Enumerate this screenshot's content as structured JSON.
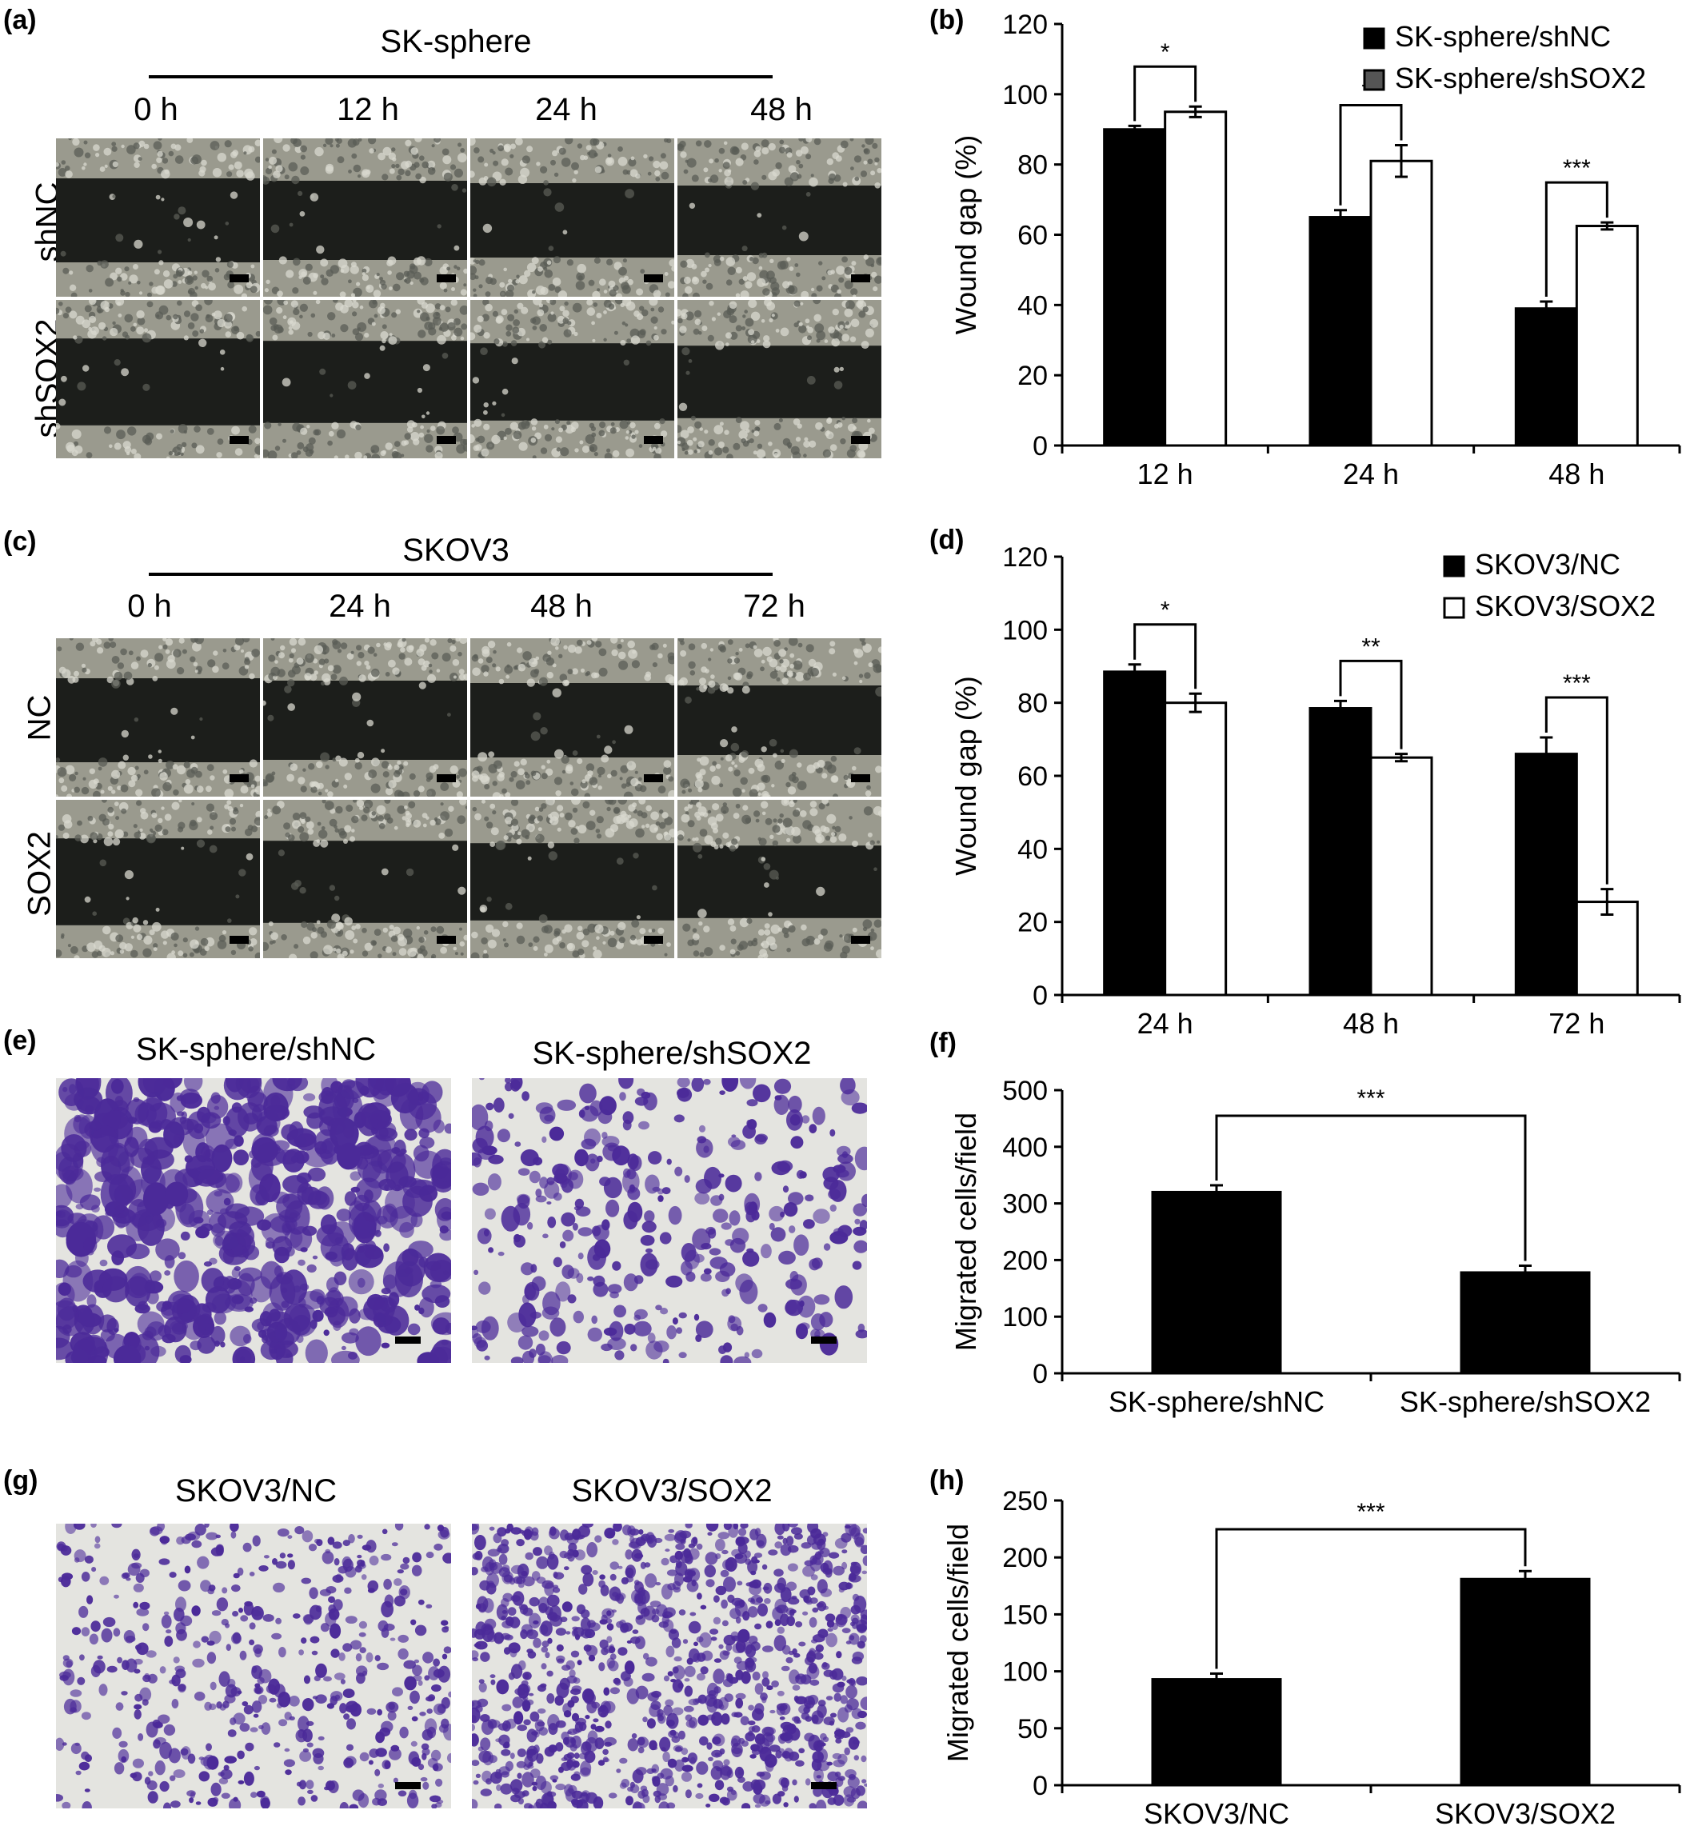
{
  "panels": {
    "a": {
      "label": "(a)",
      "group": "SK-sphere",
      "times": [
        "0 h",
        "12 h",
        "24 h",
        "48 h"
      ],
      "rows": [
        "shNC",
        "shSOX2"
      ]
    },
    "c": {
      "label": "(c)",
      "group": "SKOV3",
      "times": [
        "0 h",
        "24 h",
        "48 h",
        "72 h"
      ],
      "rows": [
        "NC",
        "SOX2"
      ]
    },
    "e": {
      "label": "(e)",
      "titles": [
        "SK-sphere/shNC",
        "SK-sphere/shSOX2"
      ]
    },
    "g": {
      "label": "(g)",
      "titles": [
        "SKOV3/NC",
        "SKOV3/SOX2"
      ]
    }
  },
  "colors": {
    "bar_black": "#000000",
    "bar_white": "#ffffff",
    "legend_gray": "#555555",
    "wound_gap": "#1c1e1b",
    "cells": "#9a9a8e",
    "stain": "#4b2a99",
    "membrane": "#e4e4e0"
  },
  "chart_data": [
    {
      "id": "b",
      "panel_label": "(b)",
      "type": "bar",
      "categories": [
        "12 h",
        "24 h",
        "48 h"
      ],
      "series": [
        {
          "name": "SK-sphere/shNC",
          "values": [
            90,
            65,
            39
          ],
          "errors": [
            1,
            2,
            2
          ]
        },
        {
          "name": "SK-sphere/shSOX2",
          "values": [
            95,
            81,
            62.5
          ],
          "errors": [
            1.5,
            4.5,
            1
          ]
        }
      ],
      "ylabel": "Wound gap (%)",
      "ylim": [
        0,
        120
      ],
      "yticks": [
        0,
        20,
        40,
        60,
        80,
        100,
        120
      ],
      "significance": [
        "*",
        "**",
        "***"
      ],
      "legend": "top-right"
    },
    {
      "id": "d",
      "panel_label": "(d)",
      "type": "bar",
      "categories": [
        "24 h",
        "48 h",
        "72 h"
      ],
      "series": [
        {
          "name": "SKOV3/NC",
          "values": [
            88.5,
            78.5,
            66
          ],
          "errors": [
            2,
            2,
            4.5
          ]
        },
        {
          "name": "SKOV3/SOX2",
          "values": [
            80,
            65,
            25.5
          ],
          "errors": [
            2.5,
            1,
            3.5
          ]
        }
      ],
      "ylabel": "Wound gap (%)",
      "ylim": [
        0,
        120
      ],
      "yticks": [
        0,
        20,
        40,
        60,
        80,
        100,
        120
      ],
      "significance": [
        "*",
        "**",
        "***"
      ],
      "legend": "top-right"
    },
    {
      "id": "f",
      "panel_label": "(f)",
      "type": "bar",
      "categories": [
        "SK-sphere/shNC",
        "SK-sphere/shSOX2"
      ],
      "series": [
        {
          "values": [
            320,
            178
          ],
          "errors": [
            12,
            12
          ]
        }
      ],
      "ylabel": "Migrated cells/field",
      "ylim": [
        0,
        500
      ],
      "yticks": [
        0,
        100,
        200,
        300,
        400,
        500
      ],
      "significance": [
        "***"
      ]
    },
    {
      "id": "h",
      "panel_label": "(h)",
      "type": "bar",
      "categories": [
        "SKOV3/NC",
        "SKOV3/SOX2"
      ],
      "series": [
        {
          "values": [
            93,
            181
          ],
          "errors": [
            5,
            7
          ]
        }
      ],
      "ylabel": "Migrated cells/field",
      "ylim": [
        0,
        250
      ],
      "yticks": [
        0,
        50,
        100,
        150,
        200,
        250
      ],
      "significance": [
        "***"
      ]
    }
  ]
}
